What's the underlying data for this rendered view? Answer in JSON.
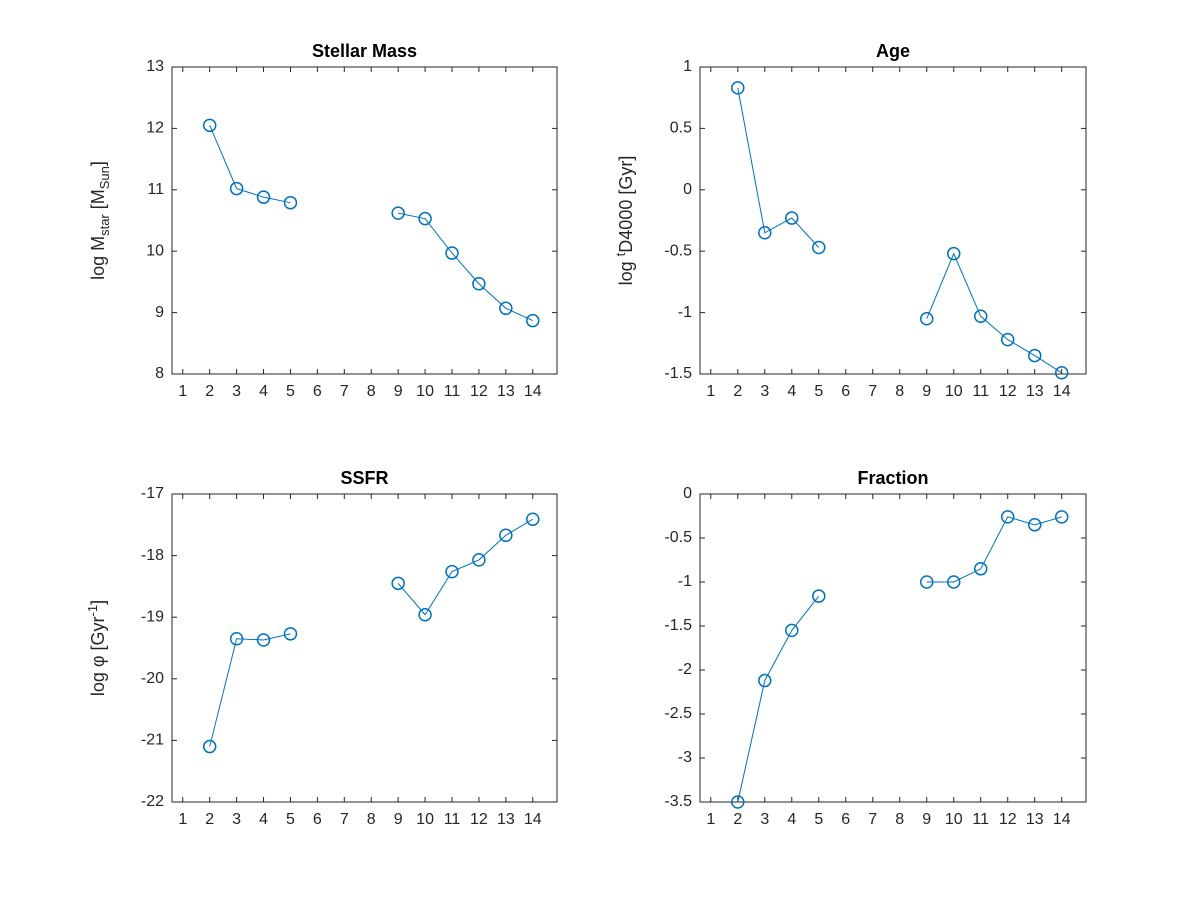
{
  "chart_data": [
    {
      "type": "line",
      "title": "Stellar Mass",
      "ylabel": [
        {
          "text": "log M"
        },
        {
          "text": "star",
          "shift": "sub"
        },
        {
          "text": " [M"
        },
        {
          "text": "Sun",
          "shift": "sub"
        },
        {
          "text": "]"
        }
      ],
      "x": [
        1,
        2,
        3,
        4,
        5,
        6,
        7,
        8,
        9,
        10,
        11,
        12,
        13,
        14
      ],
      "series": [
        {
          "color": "#0072bd",
          "values": [
            null,
            12.05,
            11.02,
            10.88,
            10.79,
            null,
            null,
            null,
            10.62,
            10.53,
            9.97,
            9.47,
            9.07,
            8.87
          ]
        }
      ],
      "xlim": [
        0.6,
        14.9
      ],
      "xticks": [
        1,
        2,
        3,
        4,
        5,
        6,
        7,
        8,
        9,
        10,
        11,
        12,
        13,
        14
      ],
      "ylim": [
        8,
        13
      ],
      "yticks": [
        8,
        9,
        10,
        11,
        12,
        13
      ],
      "marker": "circle",
      "grid": false
    },
    {
      "type": "line",
      "title": "Age",
      "ylabel": [
        {
          "text": "log "
        },
        {
          "text": "t",
          "shift": "sup"
        },
        {
          "text": "D4000 [Gyr]"
        }
      ],
      "x": [
        1,
        2,
        3,
        4,
        5,
        6,
        7,
        8,
        9,
        10,
        11,
        12,
        13,
        14
      ],
      "series": [
        {
          "color": "#0072bd",
          "values": [
            null,
            0.83,
            -0.35,
            -0.23,
            -0.47,
            null,
            null,
            null,
            -1.05,
            -0.52,
            -1.03,
            -1.22,
            -1.35,
            -1.49
          ]
        }
      ],
      "xlim": [
        0.6,
        14.9
      ],
      "xticks": [
        1,
        2,
        3,
        4,
        5,
        6,
        7,
        8,
        9,
        10,
        11,
        12,
        13,
        14
      ],
      "ylim": [
        -1.5,
        1
      ],
      "yticks": [
        -1.5,
        -1,
        -0.5,
        0,
        0.5,
        1
      ],
      "marker": "circle",
      "grid": false
    },
    {
      "type": "line",
      "title": "SSFR",
      "ylabel": [
        {
          "text": "log φ [Gyr"
        },
        {
          "text": "-1",
          "shift": "sup"
        },
        {
          "text": "]"
        }
      ],
      "x": [
        1,
        2,
        3,
        4,
        5,
        6,
        7,
        8,
        9,
        10,
        11,
        12,
        13,
        14
      ],
      "series": [
        {
          "color": "#0072bd",
          "values": [
            null,
            -21.1,
            -19.35,
            -19.37,
            -19.27,
            null,
            null,
            null,
            -18.45,
            -18.96,
            -18.26,
            -18.07,
            -17.67,
            -17.41
          ]
        }
      ],
      "xlim": [
        0.6,
        14.9
      ],
      "xticks": [
        1,
        2,
        3,
        4,
        5,
        6,
        7,
        8,
        9,
        10,
        11,
        12,
        13,
        14
      ],
      "ylim": [
        -22,
        -17
      ],
      "yticks": [
        -22,
        -21,
        -20,
        -19,
        -18,
        -17
      ],
      "marker": "circle",
      "grid": false
    },
    {
      "type": "line",
      "title": "Fraction",
      "x": [
        1,
        2,
        3,
        4,
        5,
        6,
        7,
        8,
        9,
        10,
        11,
        12,
        13,
        14
      ],
      "series": [
        {
          "color": "#0072bd",
          "values": [
            null,
            -3.5,
            -2.12,
            -1.55,
            -1.16,
            null,
            null,
            null,
            -1.0,
            -1.0,
            -0.85,
            -0.26,
            -0.35,
            -0.26
          ]
        }
      ],
      "xlim": [
        0.6,
        14.9
      ],
      "xticks": [
        1,
        2,
        3,
        4,
        5,
        6,
        7,
        8,
        9,
        10,
        11,
        12,
        13,
        14
      ],
      "ylim": [
        -3.5,
        0
      ],
      "yticks": [
        -3.5,
        -3,
        -2.5,
        -2,
        -1.5,
        -1,
        -0.5,
        0
      ],
      "marker": "circle",
      "grid": false
    }
  ]
}
